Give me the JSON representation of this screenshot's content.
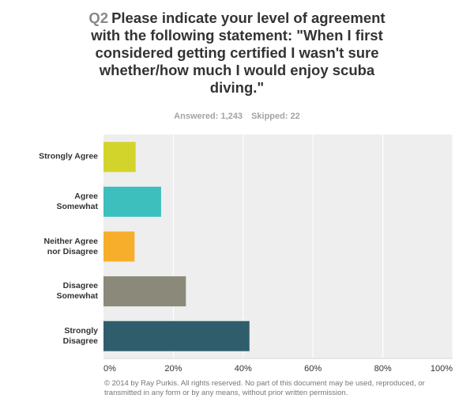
{
  "header": {
    "qnum": "Q2",
    "title": "Please indicate your level of agreement with the following statement: \"When I first considered getting certified I wasn't sure whether/how much I would enjoy scuba diving.\"",
    "answered": "Answered: 1,243",
    "skipped": "Skipped: 22"
  },
  "chart_data": {
    "type": "bar",
    "orientation": "horizontal",
    "categories": [
      "Strongly Agree",
      "Agree\nSomewhat",
      "Neither Agree\nnor Disagree",
      "Disagree\nSomewhat",
      "Strongly\nDisagree"
    ],
    "values": [
      9.2,
      16.5,
      8.9,
      23.6,
      41.8
    ],
    "colors": [
      "#d2d42b",
      "#3cbfbd",
      "#f7ae2a",
      "#8b8a7a",
      "#2f5d6c"
    ],
    "xlim": [
      0,
      100
    ],
    "ticks": [
      "0%",
      "20%",
      "40%",
      "60%",
      "80%",
      "100%"
    ],
    "grid": true
  },
  "footer": {
    "copyright": "© 2014 by Ray Purkis. All rights reserved. No part of this document may be used, reproduced, or transmitted in any form or by any means, without prior written permission."
  }
}
